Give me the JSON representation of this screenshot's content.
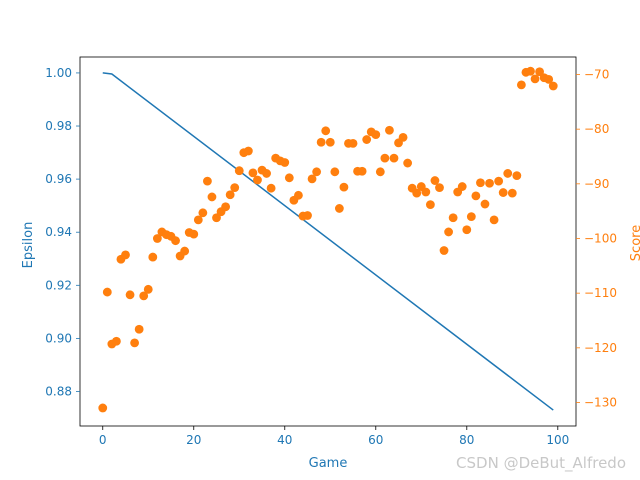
{
  "chart_data": {
    "type": "line+scatter",
    "xlabel": "Game",
    "ylabel_left": "Epsilon",
    "ylabel_right": "Score",
    "xlim": [
      -5,
      104
    ],
    "xticks": [
      0,
      20,
      40,
      60,
      80,
      100
    ],
    "ylim_left": [
      0.867,
      1.006
    ],
    "yticks_left": [
      0.88,
      0.9,
      0.92,
      0.94,
      0.96,
      0.98,
      1.0
    ],
    "yticks_left_labels": [
      "0.88",
      "0.90",
      "0.92",
      "0.94",
      "0.96",
      "0.98",
      "1.00"
    ],
    "ylim_right": [
      -134.3,
      -66.8
    ],
    "yticks_right": [
      -130,
      -120,
      -110,
      -100,
      -90,
      -80,
      -70
    ],
    "colors": {
      "epsilon": "#1f77b4",
      "score": "#ff7f0e",
      "axis": "#000000"
    },
    "series": [
      {
        "name": "Epsilon",
        "kind": "line",
        "axis": "left",
        "x": [
          0,
          2,
          99
        ],
        "y": [
          1.0,
          0.9996,
          0.873
        ]
      },
      {
        "name": "Score",
        "kind": "scatter",
        "axis": "right",
        "x": [
          0,
          1,
          2,
          3,
          4,
          5,
          6,
          7,
          8,
          9,
          10,
          11,
          12,
          13,
          14,
          15,
          16,
          17,
          18,
          19,
          20,
          21,
          22,
          23,
          24,
          25,
          26,
          27,
          28,
          29,
          30,
          31,
          32,
          33,
          34,
          35,
          36,
          37,
          38,
          39,
          40,
          41,
          42,
          43,
          44,
          45,
          46,
          47,
          48,
          49,
          50,
          51,
          52,
          53,
          54,
          55,
          56,
          57,
          58,
          59,
          60,
          61,
          62,
          63,
          64,
          65,
          66,
          67,
          68,
          69,
          70,
          71,
          72,
          73,
          74,
          75,
          76,
          77,
          78,
          79,
          80,
          81,
          82,
          83,
          84,
          85,
          86,
          87,
          88,
          89,
          90,
          91,
          92,
          93,
          94,
          95,
          96,
          97,
          98,
          99
        ],
        "y": [
          -131,
          -109.8,
          -119.3,
          -118.8,
          -103.8,
          -103,
          -110.3,
          -119.1,
          -116.6,
          -110.5,
          -109.3,
          -103.4,
          -100,
          -98.8,
          -99.3,
          -99.6,
          -100.4,
          -103.2,
          -102.3,
          -98.9,
          -99.2,
          -96.6,
          -95.3,
          -89.5,
          -92.4,
          -96.2,
          -95.1,
          -94.2,
          -92,
          -90.7,
          -87.6,
          -84.3,
          -84,
          -88,
          -89.3,
          -87.5,
          -88.1,
          -90.8,
          -85.3,
          -85.8,
          -86.1,
          -88.9,
          -93,
          -92.1,
          -95.9,
          -95.8,
          -89.1,
          -87.8,
          -82.4,
          -80.3,
          -82.4,
          -87.8,
          -94.5,
          -90.6,
          -82.6,
          -82.6,
          -87.7,
          -87.7,
          -81.9,
          -80.5,
          -81,
          -87.8,
          -85.3,
          -80.2,
          -85.3,
          -82.5,
          -81.5,
          -86.2,
          -90.8,
          -91.7,
          -90.5,
          -91.5,
          -93.8,
          -89.4,
          -90.7,
          -102.2,
          -98.8,
          -96.2,
          -91.5,
          -90.5,
          -98.4,
          -96,
          -92.2,
          -89.8,
          -93.7,
          -89.9,
          -96.6,
          -89.5,
          -91.6,
          -88.1,
          -91.7,
          -88.5,
          -71.9,
          -69.6,
          -69.4,
          -70.8,
          -69.5,
          -70.6,
          -70.9,
          -72.1
        ]
      }
    ]
  },
  "watermark": "CSDN @DeBut_Alfredo"
}
